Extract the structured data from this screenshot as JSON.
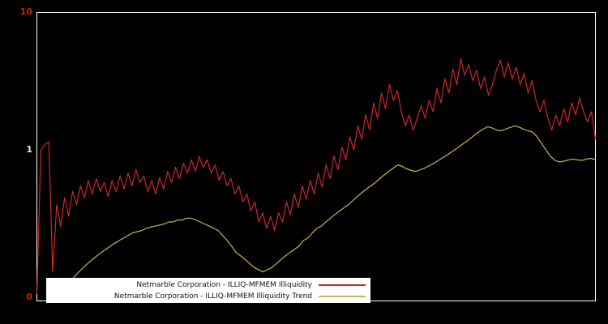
{
  "chart_data": {
    "type": "line",
    "title": "",
    "y_scale": "log",
    "ylim": [
      0.08,
      10
    ],
    "grid": false,
    "legend_position": "bottom-left",
    "y_ticks": [
      {
        "label": "10",
        "value": 10
      },
      {
        "label": "1",
        "value": 1
      },
      {
        "label": "0",
        "value": 0.08
      }
    ],
    "colors": {
      "frame": "#ffffff",
      "background": "#000000",
      "tick_major": "#cc2200",
      "tick_mid": "#e8e8e8"
    },
    "series": [
      {
        "id": "illiquidity",
        "name": "Netmarble Corporation - ILLIQ-MFMEM Illiquidity",
        "color": "#cd2727",
        "x_frac": [
          0.0,
          1.0
        ],
        "values": [
          0.09,
          1.0,
          1.1,
          1.15,
          0.13,
          0.4,
          0.28,
          0.45,
          0.33,
          0.5,
          0.4,
          0.55,
          0.45,
          0.6,
          0.48,
          0.62,
          0.5,
          0.58,
          0.46,
          0.6,
          0.5,
          0.65,
          0.52,
          0.68,
          0.55,
          0.72,
          0.58,
          0.65,
          0.5,
          0.6,
          0.48,
          0.63,
          0.52,
          0.7,
          0.58,
          0.75,
          0.62,
          0.8,
          0.68,
          0.85,
          0.7,
          0.9,
          0.75,
          0.85,
          0.68,
          0.78,
          0.6,
          0.7,
          0.55,
          0.62,
          0.48,
          0.55,
          0.42,
          0.48,
          0.36,
          0.42,
          0.3,
          0.35,
          0.27,
          0.33,
          0.26,
          0.35,
          0.3,
          0.42,
          0.34,
          0.48,
          0.38,
          0.55,
          0.44,
          0.6,
          0.48,
          0.68,
          0.54,
          0.78,
          0.62,
          0.9,
          0.72,
          1.05,
          0.85,
          1.25,
          1.0,
          1.5,
          1.2,
          1.8,
          1.4,
          2.2,
          1.7,
          2.6,
          2.0,
          3.0,
          2.3,
          2.7,
          1.9,
          1.5,
          1.8,
          1.4,
          1.7,
          2.1,
          1.7,
          2.3,
          1.9,
          2.8,
          2.2,
          3.3,
          2.6,
          3.9,
          3.0,
          4.6,
          3.5,
          4.2,
          3.2,
          3.8,
          2.8,
          3.4,
          2.5,
          3.0,
          3.8,
          4.5,
          3.4,
          4.3,
          3.3,
          4.0,
          3.0,
          3.6,
          2.6,
          3.2,
          2.3,
          1.9,
          2.3,
          1.7,
          1.4,
          1.8,
          1.5,
          2.0,
          1.6,
          2.2,
          1.8,
          2.4,
          1.9,
          1.6,
          1.9,
          1.2
        ]
      },
      {
        "id": "illiquidity-trend",
        "name": "Netmarble Corporation - ILLIQ-MFMEM Illiquidity Trend",
        "color": "#c8b454",
        "x_frac": [
          0.043,
          1.0
        ],
        "values": [
          0.09,
          0.1,
          0.11,
          0.12,
          0.13,
          0.14,
          0.15,
          0.16,
          0.17,
          0.18,
          0.19,
          0.2,
          0.21,
          0.22,
          0.23,
          0.24,
          0.25,
          0.255,
          0.26,
          0.27,
          0.275,
          0.28,
          0.285,
          0.29,
          0.3,
          0.3,
          0.31,
          0.31,
          0.32,
          0.32,
          0.31,
          0.3,
          0.29,
          0.28,
          0.27,
          0.26,
          0.24,
          0.22,
          0.2,
          0.18,
          0.17,
          0.16,
          0.15,
          0.14,
          0.135,
          0.13,
          0.135,
          0.14,
          0.15,
          0.16,
          0.17,
          0.18,
          0.19,
          0.2,
          0.22,
          0.23,
          0.25,
          0.27,
          0.28,
          0.3,
          0.32,
          0.34,
          0.36,
          0.38,
          0.4,
          0.43,
          0.46,
          0.49,
          0.52,
          0.55,
          0.58,
          0.62,
          0.66,
          0.7,
          0.74,
          0.78,
          0.76,
          0.73,
          0.71,
          0.7,
          0.72,
          0.74,
          0.77,
          0.8,
          0.84,
          0.88,
          0.92,
          0.97,
          1.02,
          1.08,
          1.14,
          1.2,
          1.28,
          1.35,
          1.42,
          1.48,
          1.45,
          1.4,
          1.38,
          1.42,
          1.46,
          1.5,
          1.47,
          1.42,
          1.38,
          1.35,
          1.25,
          1.12,
          1.0,
          0.9,
          0.84,
          0.82,
          0.83,
          0.85,
          0.86,
          0.85,
          0.84,
          0.86,
          0.87,
          0.85
        ]
      }
    ]
  },
  "legend": {
    "items": [
      {
        "label": "Netmarble Corporation - ILLIQ-MFMEM Illiquidity",
        "color": "#cd2727"
      },
      {
        "label": "Netmarble Corporation - ILLIQ-MFMEM Illiquidity Trend",
        "color": "#c8b454"
      }
    ]
  }
}
